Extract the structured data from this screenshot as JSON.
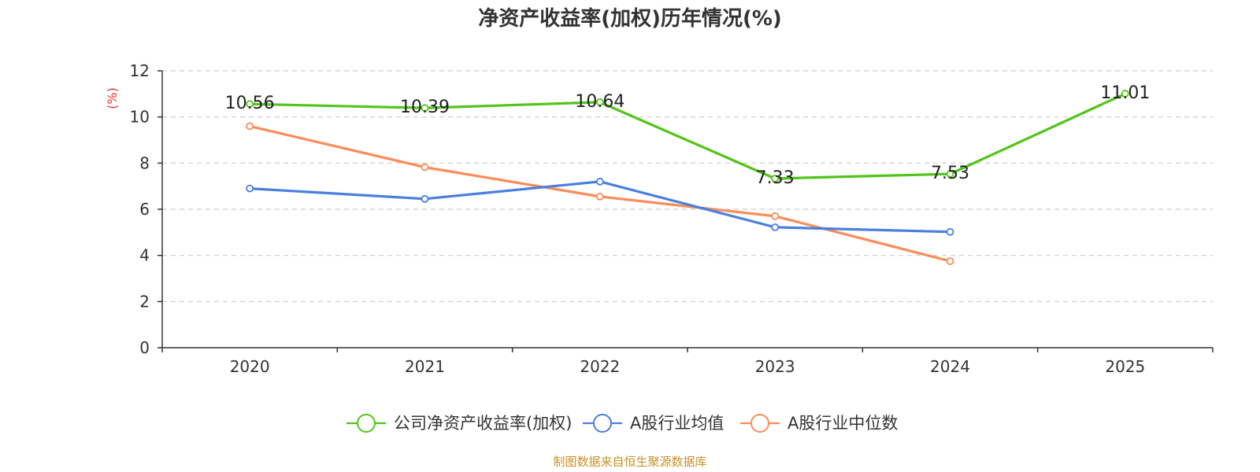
{
  "chart_data": {
    "type": "line",
    "title": "净资产收益率(加权)历年情况(%)",
    "xlabel": "",
    "ylabel": "(%)",
    "ylabel_color": "#e5312a",
    "categories": [
      "2020",
      "2021",
      "2022",
      "2023",
      "2024",
      "2025"
    ],
    "ylim": [
      0,
      12
    ],
    "yticks": [
      0,
      2,
      4,
      6,
      8,
      10,
      12
    ],
    "grid": true,
    "legend": "bottom-center",
    "series": [
      {
        "name": "公司净资产收益率(加权)",
        "color": "#52c41a",
        "values": [
          10.56,
          10.39,
          10.64,
          7.33,
          7.53,
          11.01
        ],
        "data_labels": [
          "10.56",
          "10.39",
          "10.64",
          "7.33",
          "7.53",
          "11.01"
        ]
      },
      {
        "name": "A股行业均值",
        "color": "#4a7fdc",
        "values": [
          6.9,
          6.45,
          7.2,
          5.22,
          5.02,
          null
        ]
      },
      {
        "name": "A股行业中位数",
        "color": "#fa8c5a",
        "values": [
          9.6,
          7.82,
          6.55,
          5.7,
          3.75,
          null
        ]
      }
    ]
  },
  "footer": {
    "source": "制图数据来自恒生聚源数据库",
    "source_color": "#c8922a"
  }
}
